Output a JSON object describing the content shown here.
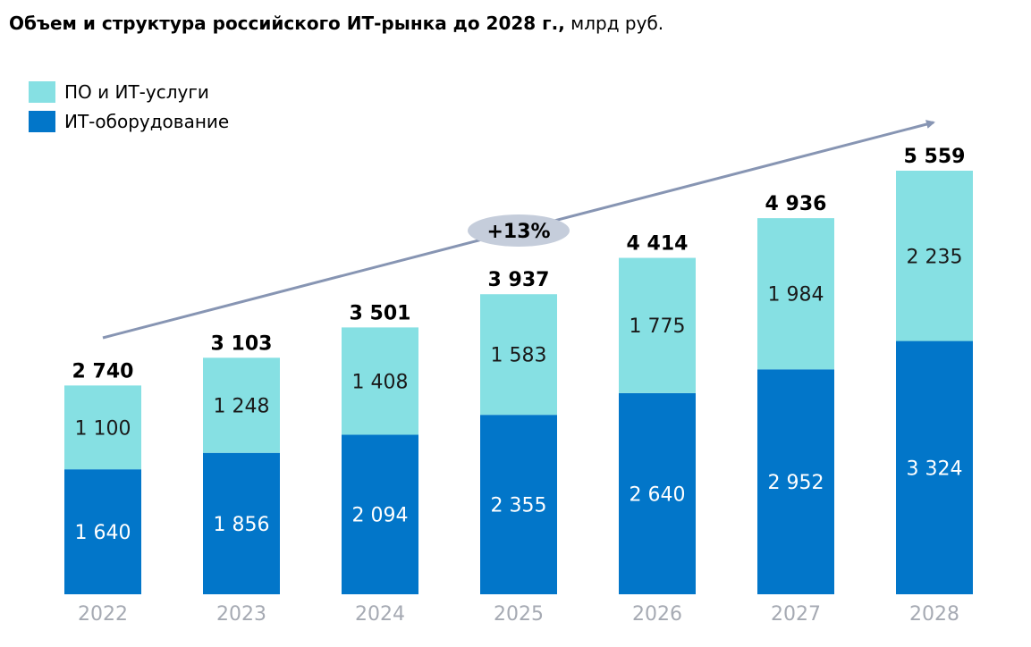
{
  "title": {
    "bold": "Объем и структура российского ИТ-рынка до 2028 г.,",
    "unit": " млрд руб."
  },
  "colors": {
    "software": "#86e0e3",
    "hardware": "#0276c9",
    "arrow": "#8795b3",
    "cagr_bubble": "#c5cddb",
    "axis_labels": "#a6aab3"
  },
  "chart_data": {
    "type": "bar",
    "stacked": true,
    "title": "Объем и структура российского ИТ-рынка до 2028 г., млрд руб.",
    "categories": [
      "2022",
      "2023",
      "2024",
      "2025",
      "2026",
      "2027",
      "2028"
    ],
    "series": [
      {
        "name": "ИТ-оборудование",
        "values": [
          1640,
          1856,
          2094,
          2355,
          2640,
          2952,
          3324
        ],
        "labels": [
          "1 640",
          "1 856",
          "2 094",
          "2 355",
          "2 640",
          "2 952",
          "3 324"
        ]
      },
      {
        "name": "ПО и ИТ-услуги",
        "values": [
          1100,
          1248,
          1408,
          1583,
          1775,
          1984,
          2235
        ],
        "labels": [
          "1 100",
          "1 248",
          "1 408",
          "1 583",
          "1 775",
          "1 984",
          "2 235"
        ]
      }
    ],
    "totals": [
      2740,
      3103,
      3501,
      3937,
      4414,
      4936,
      5559
    ],
    "total_labels": [
      "2 740",
      "3 103",
      "3 501",
      "3 937",
      "4 414",
      "4 936",
      "5 559"
    ],
    "legend": [
      "ПО и ИТ-услуги",
      "ИТ-оборудование"
    ],
    "legend_position": "top-left",
    "annotation": "+13%",
    "grid": false,
    "ylim": [
      0,
      5559
    ]
  }
}
